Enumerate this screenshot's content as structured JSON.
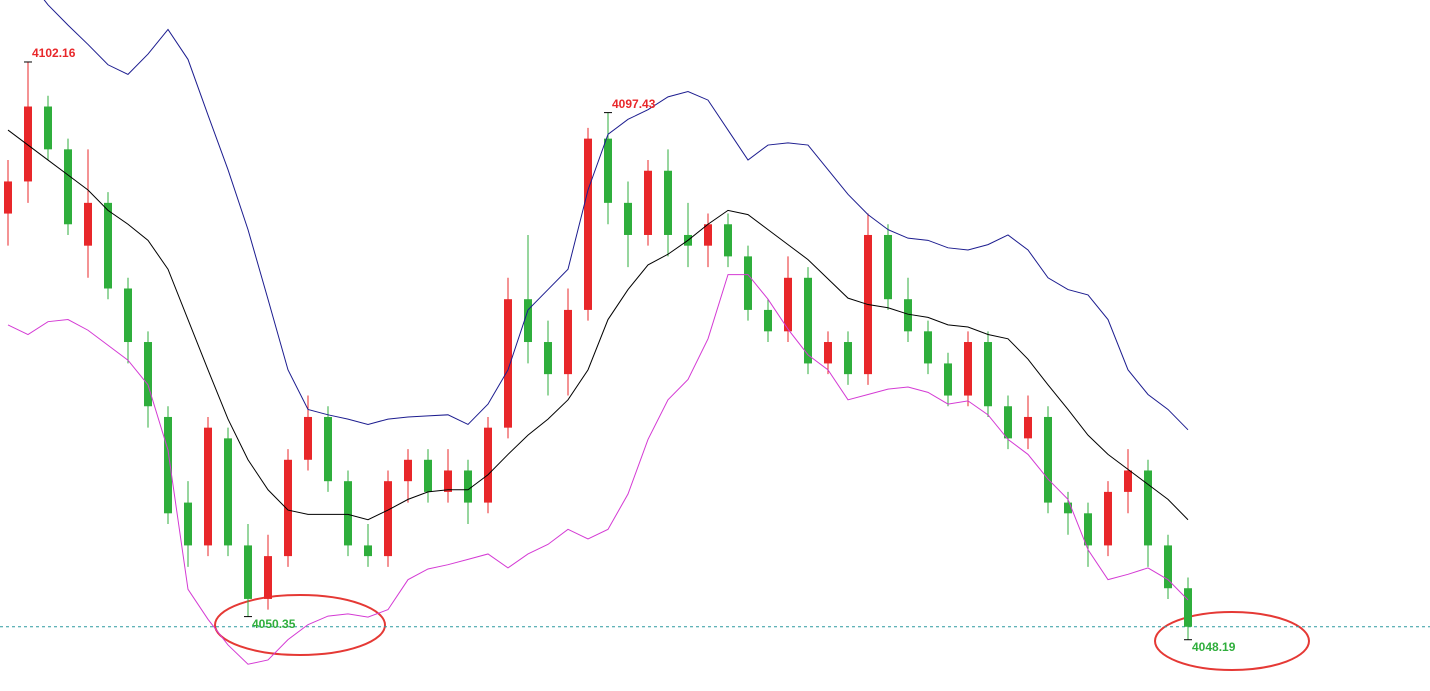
{
  "chart_data": {
    "type": "candlestick",
    "ylim": [
      4043.4,
      4107.95
    ],
    "up_color": "#e8272a",
    "down_color": "#2fae3c",
    "upper_color": "#1c1c8f",
    "middle_color": "#000000",
    "lower_color": "#d43ad4",
    "last_line_color": "#2f9aa0",
    "open": [
      4088,
      4091,
      4098,
      4094,
      4085,
      4089,
      4081,
      4076,
      4069,
      4061,
      4057,
      4067,
      4057,
      4052,
      4056,
      4065,
      4069,
      4063,
      4057,
      4056,
      4063,
      4065,
      4062,
      4064,
      4061,
      4068,
      4080,
      4076,
      4073,
      4079,
      4095,
      4089,
      4086,
      4092,
      4086,
      4085,
      4087,
      4084,
      4079,
      4077,
      4082,
      4074,
      4076,
      4073,
      4086,
      4080,
      4077,
      4074,
      4071,
      4076,
      4070,
      4067,
      4069,
      4061,
      4060,
      4057,
      4062,
      4064,
      4057,
      4053
    ],
    "high": [
      4093,
      4102.16,
      4099,
      4095,
      4094,
      4090,
      4082,
      4077,
      4070,
      4063,
      4069,
      4068,
      4059,
      4058,
      4066,
      4071,
      4070,
      4064,
      4059,
      4064,
      4066,
      4066,
      4066,
      4065,
      4069,
      4082,
      4086,
      4078,
      4081,
      4096,
      4097.43,
      4091,
      4093,
      4094,
      4089,
      4088,
      4088,
      4085,
      4080,
      4084,
      4083,
      4077,
      4077,
      4088,
      4087,
      4082,
      4078,
      4075,
      4077,
      4077,
      4071,
      4071,
      4070,
      4062,
      4061,
      4063,
      4066,
      4065,
      4058,
      4054
    ],
    "low": [
      4085,
      4089,
      4093,
      4086,
      4082,
      4080,
      4074,
      4068,
      4059,
      4055,
      4056,
      4056,
      4050.35,
      4051,
      4055,
      4064,
      4062,
      4056,
      4055,
      4055,
      4061,
      4061,
      4061,
      4059,
      4060,
      4067,
      4074,
      4071,
      4071,
      4078,
      4087,
      4083,
      4085,
      4084,
      4083,
      4083,
      4083,
      4078,
      4076,
      4076,
      4073,
      4073,
      4072,
      4072,
      4079,
      4076,
      4073,
      4070,
      4070,
      4069,
      4066,
      4066,
      4060,
      4058,
      4055,
      4056,
      4060,
      4055,
      4052,
      4048.19
    ],
    "close": [
      4091,
      4098,
      4094,
      4087,
      4089,
      4081,
      4076,
      4070,
      4060,
      4057,
      4068,
      4057,
      4052,
      4056,
      4065,
      4069,
      4063,
      4057,
      4056,
      4063,
      4065,
      4062,
      4064,
      4061,
      4068,
      4080,
      4076,
      4073,
      4079,
      4095,
      4089,
      4086,
      4092,
      4086,
      4085,
      4087,
      4084,
      4079,
      4077,
      4082,
      4074,
      4076,
      4073,
      4086,
      4080,
      4077,
      4074,
      4071,
      4076,
      4070,
      4067,
      4069,
      4061,
      4060,
      4057,
      4062,
      4064,
      4057,
      4053,
      4049.4
    ],
    "upper": [
      4111.7,
      4109.9,
      4107.5,
      4105.6,
      4103.8,
      4101.9,
      4101.0,
      4102.9,
      4105.2,
      4102.4,
      4097.2,
      4092.1,
      4086.5,
      4080.0,
      4073.4,
      4069.7,
      4069.2,
      4068.8,
      4068.3,
      4068.8,
      4069.0,
      4069.1,
      4069.2,
      4068.3,
      4070.2,
      4073.4,
      4079.0,
      4080.9,
      4082.8,
      4090.2,
      4095.4,
      4096.8,
      4097.7,
      4098.9,
      4099.4,
      4098.6,
      4095.8,
      4093.0,
      4094.4,
      4094.6,
      4094.4,
      4092.1,
      4089.8,
      4087.9,
      4086.5,
      4085.7,
      4085.5,
      4084.8,
      4084.6,
      4085.1,
      4086.0,
      4084.6,
      4082.0,
      4080.9,
      4080.4,
      4078.1,
      4073.4,
      4071.1,
      4069.7,
      4067.8
    ],
    "middle": [
      4095.8,
      4094.4,
      4093.0,
      4091.6,
      4090.2,
      4088.3,
      4087.0,
      4085.5,
      4082.8,
      4078.1,
      4073.4,
      4068.8,
      4065.0,
      4062.2,
      4060.3,
      4059.9,
      4059.9,
      4059.9,
      4059.4,
      4060.3,
      4061.3,
      4062.0,
      4062.2,
      4062.2,
      4063.6,
      4065.5,
      4067.3,
      4068.8,
      4070.6,
      4073.4,
      4078.1,
      4080.9,
      4083.2,
      4084.2,
      4085.5,
      4087.0,
      4088.3,
      4087.9,
      4086.5,
      4085.1,
      4083.7,
      4081.9,
      4080.1,
      4079.5,
      4079.2,
      4078.6,
      4078.3,
      4077.6,
      4077.4,
      4076.7,
      4076.3,
      4074.4,
      4072.0,
      4069.7,
      4067.3,
      4065.5,
      4064.1,
      4062.7,
      4061.3,
      4059.4
    ],
    "lower": [
      4077.6,
      4076.7,
      4077.9,
      4078.1,
      4077.1,
      4075.7,
      4074.3,
      4072.0,
      4065.9,
      4052.9,
      4050.1,
      4047.7,
      4045.9,
      4046.3,
      4048.2,
      4049.6,
      4050.4,
      4050.6,
      4050.3,
      4051.0,
      4053.8,
      4054.8,
      4055.2,
      4055.7,
      4056.2,
      4054.9,
      4056.2,
      4057.1,
      4058.5,
      4057.6,
      4058.5,
      4061.8,
      4066.9,
      4070.6,
      4072.5,
      4076.3,
      4082.3,
      4082.3,
      4080.0,
      4077.2,
      4074.8,
      4073.4,
      4070.6,
      4071.1,
      4071.6,
      4071.8,
      4071.3,
      4070.2,
      4070.5,
      4069.2,
      4066.9,
      4065.5,
      4063.2,
      4061.3,
      4056.6,
      4053.8,
      4054.3,
      4054.9,
      4053.8,
      4051.9
    ]
  }
}
